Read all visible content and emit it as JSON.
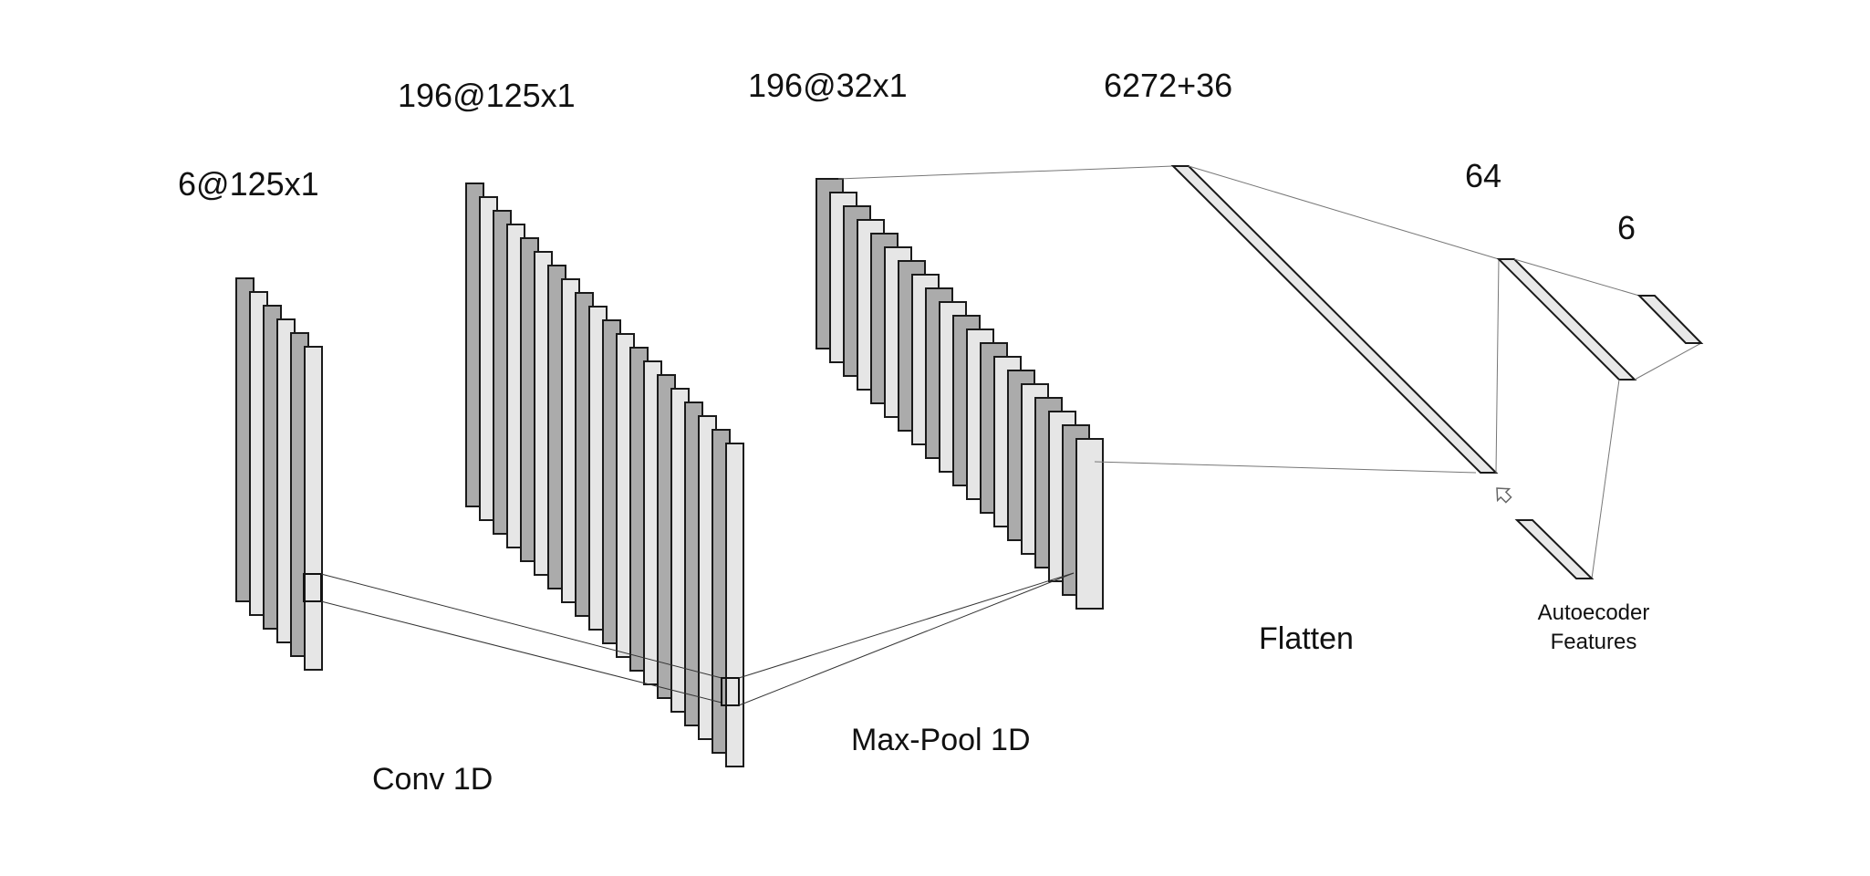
{
  "layers": {
    "input": "6@125x1",
    "conv": "196@125x1",
    "pool": "196@32x1",
    "flatten": "6272+36",
    "dense": "64",
    "output": "6"
  },
  "operations": {
    "conv": "Conv 1D",
    "pool": "Max-Pool 1D",
    "flatten": "Flatten"
  },
  "autoencoder": {
    "line1": "Autoecoder",
    "line2": "Features"
  },
  "icons": {
    "cursor": "arrow-cursor-icon"
  }
}
